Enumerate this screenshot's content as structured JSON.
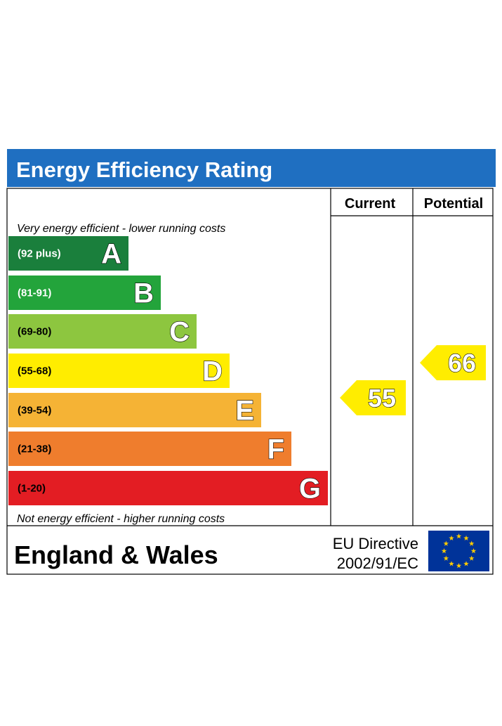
{
  "chart_data": {
    "type": "bar",
    "title": "Energy Efficiency Rating",
    "columns": [
      "Current",
      "Potential"
    ],
    "top_note": "Very energy efficient - lower running costs",
    "bottom_note": "Not energy efficient - higher running costs",
    "bands": [
      {
        "letter": "A",
        "range": "(92 plus)",
        "color": "#1a7f3c",
        "label_color": "#ffffff"
      },
      {
        "letter": "B",
        "range": "(81-91)",
        "color": "#23a43b",
        "label_color": "#ffffff"
      },
      {
        "letter": "C",
        "range": "(69-80)",
        "color": "#8dc63f",
        "label_color": "#000000"
      },
      {
        "letter": "D",
        "range": "(55-68)",
        "color": "#ffed00",
        "label_color": "#000000"
      },
      {
        "letter": "E",
        "range": "(39-54)",
        "color": "#f5b335",
        "label_color": "#000000"
      },
      {
        "letter": "F",
        "range": "(21-38)",
        "color": "#ef7d2d",
        "label_color": "#000000"
      },
      {
        "letter": "G",
        "range": "(1-20)",
        "color": "#e31d23",
        "label_color": "#000000"
      }
    ],
    "ratings": [
      {
        "column": "Current",
        "value": 55,
        "band": "D",
        "color": "#ffed00"
      },
      {
        "column": "Potential",
        "value": 66,
        "band": "D",
        "color": "#ffed00"
      }
    ]
  },
  "footer": {
    "region": "England & Wales",
    "directive_line1": "EU Directive",
    "directive_line2": "2002/91/EC"
  },
  "colors": {
    "header_bg": "#1f6fc1",
    "eu_flag_bg": "#003399",
    "eu_star": "#ffcc00",
    "border": "#000000"
  }
}
